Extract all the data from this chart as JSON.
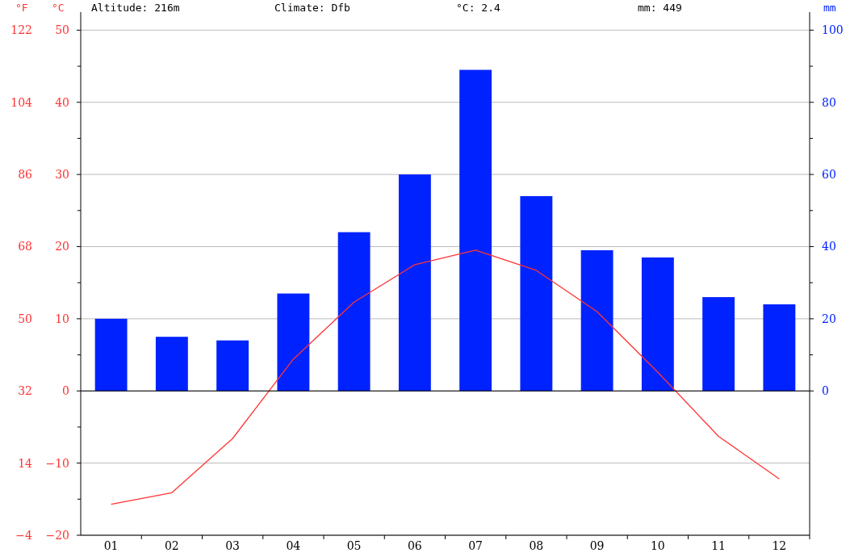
{
  "chart_data": {
    "type": "bar",
    "categories": [
      "01",
      "02",
      "03",
      "04",
      "05",
      "06",
      "07",
      "08",
      "09",
      "10",
      "11",
      "12"
    ],
    "series": [
      {
        "axis": "y2",
        "color": "#0022ff",
        "values": [
          20,
          15,
          14,
          27,
          44,
          60,
          89,
          54,
          39,
          37,
          26,
          24
        ]
      },
      {
        "type": "line",
        "axis": "y",
        "color": "#ff3333",
        "values": [
          -15.7,
          -14.1,
          -6.6,
          4.4,
          12.3,
          17.5,
          19.5,
          16.7,
          11.0,
          2.6,
          -6.3,
          -12.2
        ]
      }
    ],
    "ylabel": "°C",
    "y2label": "mm",
    "y3label": "°F",
    "ylim": [
      -20,
      52.5
    ],
    "yticks": [
      -20,
      {
        "value": -15,
        "label": null
      },
      -10,
      {
        "value": -5,
        "label": null
      },
      0,
      {
        "value": 5,
        "label": null
      },
      10,
      {
        "value": 15,
        "label": null
      },
      20,
      {
        "value": 25,
        "label": null
      },
      30,
      {
        "value": 35,
        "label": null
      },
      40,
      {
        "value": 45,
        "label": null
      },
      50
    ],
    "y2lim": [
      -40,
      105
    ],
    "y2ticks": [
      0,
      {
        "value": 10,
        "label": null
      },
      20,
      {
        "value": 30,
        "label": null
      },
      40,
      {
        "value": 50,
        "label": null
      },
      60,
      {
        "value": 70,
        "label": null
      },
      80,
      {
        "value": 90,
        "label": null
      },
      100
    ],
    "y3lim": [
      -4,
      126.5
    ],
    "y3ticks": [
      -4,
      14,
      32,
      50,
      68,
      86,
      104,
      122
    ],
    "annotations": [
      "Altitude: 216m",
      "Climate: Dfb",
      "°C: 2.4",
      "mm: 449"
    ],
    "ref_lines": [
      {
        "axis": "y",
        "value": 0,
        "color": "#000000"
      }
    ],
    "grid": "y"
  }
}
